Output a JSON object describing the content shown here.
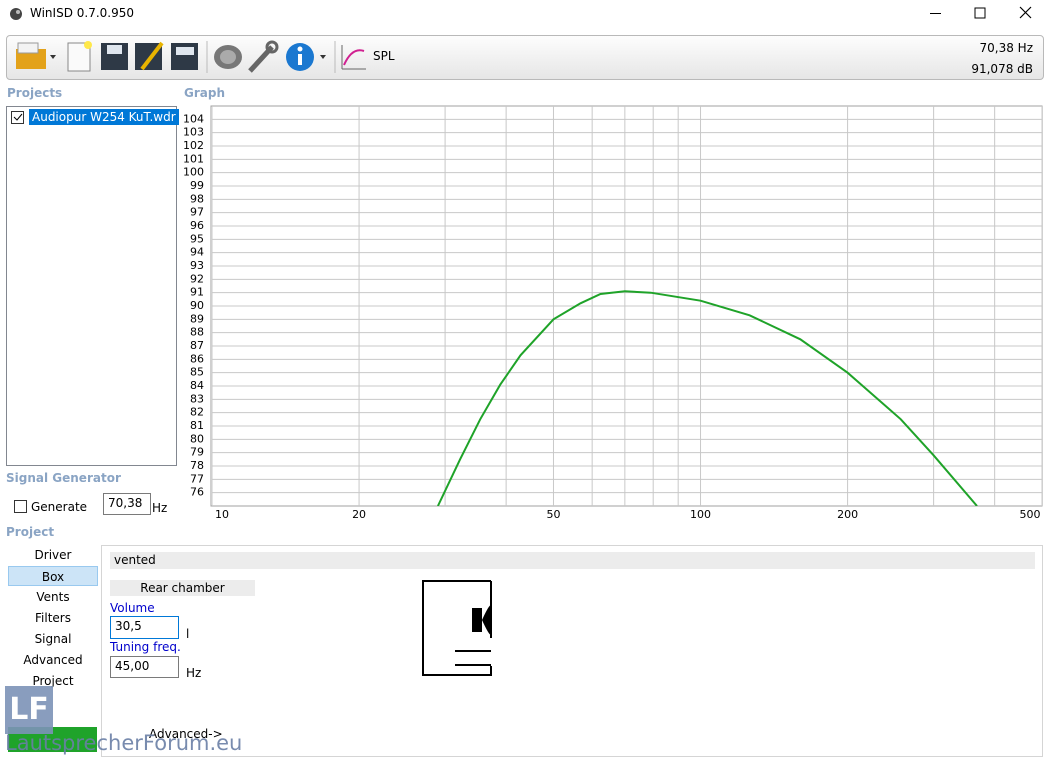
{
  "window": {
    "title": "WinISD 0.7.0.950"
  },
  "toolbar": {
    "graph_button": "SPL",
    "readout_freq": "70,38 Hz",
    "readout_level": "91,078 dB"
  },
  "projects": {
    "title": "Projects",
    "items": [
      "Audiopur W254 KuT.wdr"
    ]
  },
  "signal_generator": {
    "title": "Signal Generator",
    "generate": "Generate",
    "frequency": "70,38",
    "unit": "Hz"
  },
  "project": {
    "title": "Project",
    "tabs": [
      "Driver",
      "Box",
      "Vents",
      "Filters",
      "Signal",
      "Advanced",
      "Project"
    ],
    "box": {
      "type": "vented",
      "section": "Rear chamber",
      "volume_label": "Volume",
      "volume": "30,5",
      "volume_unit": "l",
      "tuning_label": "Tuning freq.",
      "tuning": "45,00",
      "tuning_unit": "Hz",
      "advanced": "Advanced->"
    }
  },
  "watermark": {
    "logo": "LF",
    "text": "LautsprecherForum.eu"
  },
  "chart_data": {
    "type": "line",
    "title": "Graph",
    "xscale": "log",
    "grid": true,
    "x": [
      29.0,
      32.2,
      35.4,
      38.9,
      42.8,
      50,
      56.8,
      62.4,
      70,
      79.1,
      100,
      126,
      160,
      200,
      257,
      300,
      368
    ],
    "series": [
      {
        "color": "#1fa329",
        "values": [
          75.0,
          78.5,
          81.5,
          84.1,
          86.3,
          89.0,
          90.2,
          90.9,
          91.1,
          91.0,
          90.4,
          89.3,
          87.5,
          85.0,
          81.5,
          78.8,
          75.0
        ]
      }
    ],
    "xlim": [
      10,
      500
    ],
    "ylim": [
      75,
      105
    ],
    "xticks": [
      10,
      20,
      50,
      100,
      200,
      500
    ],
    "xminor": [
      30,
      40,
      60,
      70,
      80,
      90,
      300,
      400
    ],
    "yticks": [
      76,
      77,
      78,
      79,
      80,
      81,
      82,
      83,
      84,
      85,
      86,
      87,
      88,
      89,
      90,
      91,
      92,
      93,
      94,
      95,
      96,
      97,
      98,
      99,
      100,
      101,
      102,
      103,
      104
    ]
  }
}
